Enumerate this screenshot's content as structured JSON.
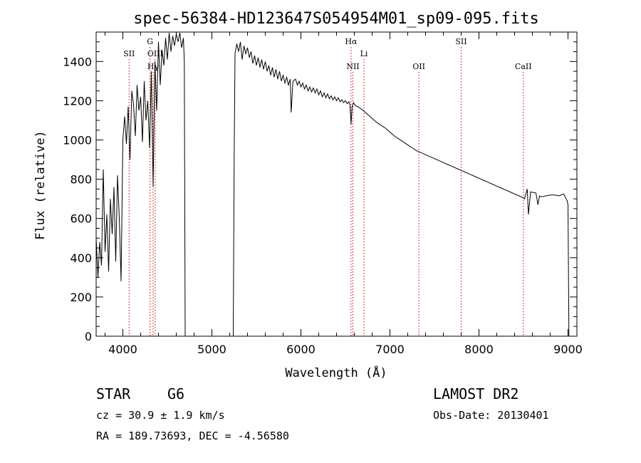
{
  "chart_data": {
    "type": "line",
    "title": "spec-56384-HD123647S054954M01_sp09-095.fits",
    "xlabel": "Wavelength (Å)",
    "ylabel": "Flux (relative)",
    "xlim": [
      3700,
      9100
    ],
    "ylim": [
      0,
      1550
    ],
    "xticks": [
      4000,
      5000,
      6000,
      7000,
      8000,
      9000
    ],
    "yticks": [
      0,
      200,
      400,
      600,
      800,
      1000,
      1200,
      1400
    ],
    "grid": false,
    "series": [
      {
        "x": [
          3700,
          3720,
          3740,
          3760,
          3780,
          3800,
          3820,
          3840,
          3860,
          3880,
          3900,
          3920,
          3940,
          3960,
          3980,
          4000,
          4020,
          4040,
          4060,
          4080,
          4100,
          4120,
          4140,
          4160,
          4180,
          4200,
          4220,
          4240,
          4260,
          4280,
          4300,
          4320,
          4340,
          4360,
          4380,
          4400,
          4420,
          4440,
          4460,
          4480,
          4500,
          4520,
          4540,
          4560,
          4580,
          4600,
          4620,
          4640,
          4660,
          4680,
          4690,
          4700,
          5240,
          5250,
          5260,
          5280,
          5300,
          5320,
          5340,
          5360,
          5380,
          5400,
          5420,
          5440,
          5460,
          5480,
          5500,
          5520,
          5540,
          5560,
          5580,
          5600,
          5620,
          5640,
          5660,
          5680,
          5700,
          5720,
          5740,
          5760,
          5780,
          5800,
          5820,
          5840,
          5860,
          5880,
          5890,
          5896,
          5910,
          5940,
          5960,
          5980,
          6000,
          6020,
          6040,
          6060,
          6080,
          6100,
          6120,
          6140,
          6160,
          6180,
          6200,
          6220,
          6240,
          6260,
          6280,
          6300,
          6320,
          6340,
          6360,
          6380,
          6400,
          6420,
          6440,
          6460,
          6480,
          6500,
          6520,
          6540,
          6550,
          6563,
          6575,
          6590,
          6610,
          6640,
          6670,
          6700,
          6750,
          6800,
          6850,
          6900,
          6950,
          7000,
          7050,
          7100,
          7150,
          7200,
          7250,
          7300,
          7350,
          7400,
          7450,
          7500,
          7550,
          7600,
          7650,
          7700,
          7750,
          7800,
          7850,
          7900,
          7950,
          8000,
          8050,
          8100,
          8150,
          8200,
          8250,
          8300,
          8350,
          8400,
          8450,
          8498,
          8510,
          8542,
          8555,
          8580,
          8640,
          8662,
          8680,
          8700,
          8750,
          8800,
          8850,
          8900,
          8950,
          8980,
          8990,
          9000,
          9010
        ],
        "y": [
          500,
          300,
          480,
          360,
          850,
          430,
          620,
          330,
          700,
          520,
          760,
          380,
          820,
          600,
          280,
          1000,
          1120,
          980,
          1170,
          900,
          1250,
          1180,
          1020,
          1280,
          1150,
          1220,
          990,
          1300,
          1100,
          1200,
          960,
          1350,
          760,
          1400,
          1150,
          1500,
          1280,
          1460,
          1380,
          1520,
          1410,
          1550,
          1450,
          1530,
          1480,
          1540,
          1500,
          1550,
          1470,
          1520,
          1400,
          0,
          0,
          920,
          1440,
          1490,
          1450,
          1500,
          1410,
          1480,
          1440,
          1470,
          1420,
          1450,
          1390,
          1430,
          1380,
          1420,
          1370,
          1410,
          1360,
          1400,
          1350,
          1380,
          1330,
          1370,
          1320,
          1360,
          1310,
          1350,
          1300,
          1330,
          1290,
          1320,
          1280,
          1310,
          1140,
          1180,
          1300,
          1310,
          1280,
          1300,
          1270,
          1290,
          1260,
          1280,
          1250,
          1270,
          1245,
          1265,
          1240,
          1260,
          1230,
          1250,
          1220,
          1240,
          1215,
          1235,
          1210,
          1225,
          1205,
          1220,
          1200,
          1215,
          1195,
          1205,
          1190,
          1200,
          1185,
          1195,
          1180,
          1080,
          1170,
          1190,
          1175,
          1170,
          1160,
          1150,
          1130,
          1110,
          1090,
          1075,
          1060,
          1040,
          1020,
          1005,
          990,
          975,
          960,
          945,
          935,
          925,
          915,
          905,
          895,
          885,
          875,
          865,
          855,
          845,
          835,
          825,
          815,
          805,
          795,
          785,
          775,
          765,
          755,
          745,
          735,
          725,
          715,
          705,
          700,
          750,
          620,
          735,
          730,
          670,
          715,
          710,
          715,
          720,
          720,
          715,
          725,
          700,
          690,
          670,
          0
        ]
      }
    ],
    "lines": [
      {
        "label": "SII",
        "x": 4070,
        "label_row": 1
      },
      {
        "label": "G",
        "x": 4305,
        "label_row": 0
      },
      {
        "label": "OIII",
        "x": 4363,
        "label_row": 1
      },
      {
        "label": "Hγ",
        "x": 4340,
        "label_row": 2
      },
      {
        "label": "Hα",
        "x": 6563,
        "label_row": 0
      },
      {
        "label": "NII",
        "x": 6584,
        "label_row": 2
      },
      {
        "label": "Li",
        "x": 6708,
        "label_row": 1
      },
      {
        "label": "OII",
        "x": 7325,
        "label_row": 2
      },
      {
        "label": "SII",
        "x": 7800,
        "label_row": 0
      },
      {
        "label": "CaII",
        "x": 8498,
        "label_row": 2
      }
    ]
  },
  "info": {
    "object_class": "STAR",
    "subclass": "G6",
    "survey": "LAMOST DR2",
    "cz": "cz = 30.9 ± 1.9 km/s",
    "obs_date": "Obs-Date: 20130401",
    "coords": "RA = 189.73693, DEC =  -4.56580"
  }
}
